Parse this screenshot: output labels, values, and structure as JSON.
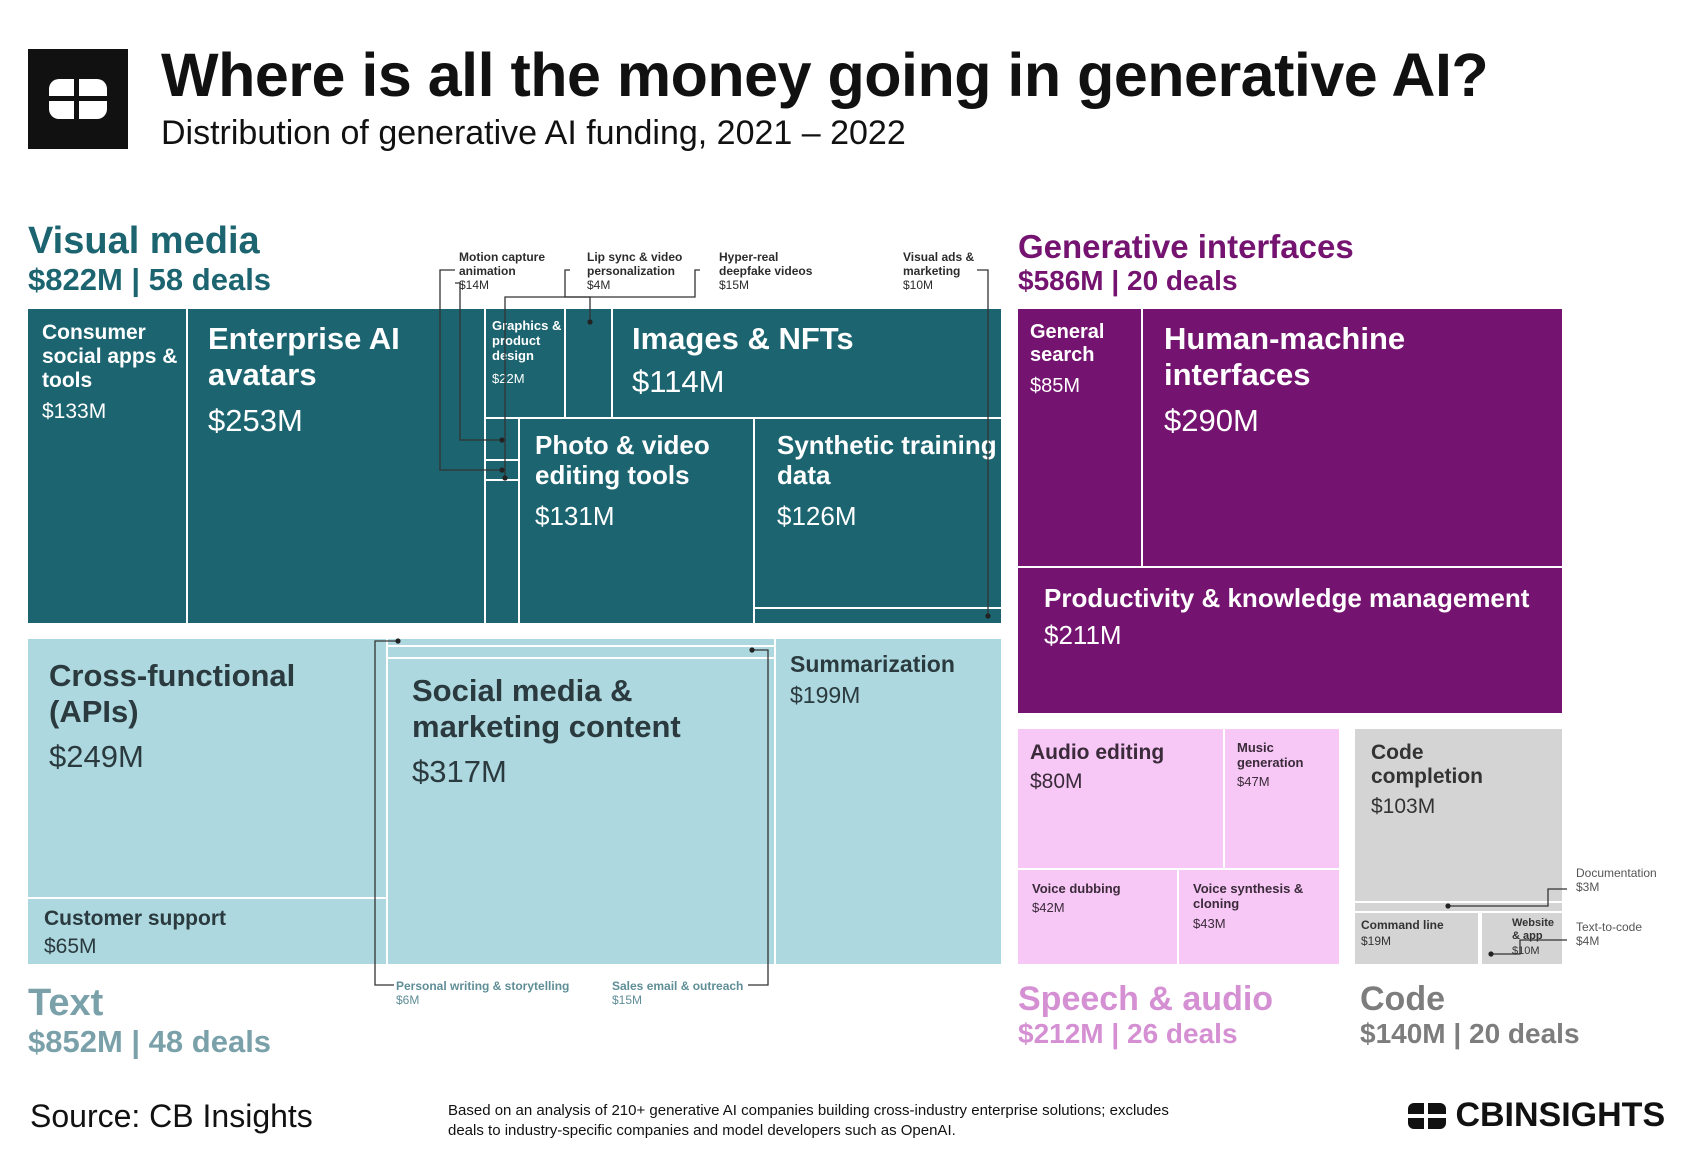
{
  "header": {
    "title": "Where is all the money going in generative AI?",
    "subtitle": "Distribution of generative AI funding, 2021 – 2022"
  },
  "groups": {
    "visual_media": {
      "name": "Visual media",
      "summary": "$822M | 58 deals",
      "color": "#1b6470"
    },
    "text": {
      "name": "Text",
      "summary": "$852M | 48 deals",
      "color": "#7aa1aa"
    },
    "generative_interfaces": {
      "name": "Generative interfaces",
      "summary": "$586M | 20 deals",
      "color": "#751370"
    },
    "speech_audio": {
      "name": "Speech & audio",
      "summary": "$212M | 26 deals",
      "color": "#d58fd3"
    },
    "code": {
      "name": "Code",
      "summary": "$140M | 20 deals",
      "color": "#7d7d7d"
    }
  },
  "chart_data": {
    "type": "treemap",
    "title": "Where is all the money going in generative AI?",
    "subtitle": "Distribution of generative AI funding, 2021 – 2022",
    "unit": "$M",
    "groups": [
      {
        "name": "Visual media",
        "total": 822,
        "deals": 58,
        "items": [
          {
            "name": "Consumer social apps & tools",
            "value": 133
          },
          {
            "name": "Enterprise AI avatars",
            "value": 253
          },
          {
            "name": "Graphics & product design",
            "value": 22
          },
          {
            "name": "Motion capture animation",
            "value": 14
          },
          {
            "name": "Lip sync & video personalization",
            "value": 4
          },
          {
            "name": "Hyper-real deepfake videos",
            "value": 15
          },
          {
            "name": "Images & NFTs",
            "value": 114
          },
          {
            "name": "Photo & video editing tools",
            "value": 131
          },
          {
            "name": "Synthetic training data",
            "value": 126
          },
          {
            "name": "Visual ads & marketing",
            "value": 10
          }
        ]
      },
      {
        "name": "Text",
        "total": 852,
        "deals": 48,
        "items": [
          {
            "name": "Cross-functional (APIs)",
            "value": 249
          },
          {
            "name": "Customer support",
            "value": 65
          },
          {
            "name": "Social media & marketing content",
            "value": 317
          },
          {
            "name": "Summarization",
            "value": 199
          },
          {
            "name": "Personal writing & storytelling",
            "value": 6
          },
          {
            "name": "Sales email & outreach",
            "value": 15
          }
        ]
      },
      {
        "name": "Generative interfaces",
        "total": 586,
        "deals": 20,
        "items": [
          {
            "name": "General search",
            "value": 85
          },
          {
            "name": "Human-machine interfaces",
            "value": 290
          },
          {
            "name": "Productivity & knowledge management",
            "value": 211
          }
        ]
      },
      {
        "name": "Speech & audio",
        "total": 212,
        "deals": 26,
        "items": [
          {
            "name": "Audio editing",
            "value": 80
          },
          {
            "name": "Music generation",
            "value": 47
          },
          {
            "name": "Voice dubbing",
            "value": 42
          },
          {
            "name": "Voice synthesis & cloning",
            "value": 43
          }
        ]
      },
      {
        "name": "Code",
        "total": 140,
        "deals": 20,
        "items": [
          {
            "name": "Code completion",
            "value": 103
          },
          {
            "name": "Command line",
            "value": 19
          },
          {
            "name": "Website & app",
            "value": 10
          },
          {
            "name": "Documentation",
            "value": 3
          },
          {
            "name": "Text-to-code",
            "value": 4
          }
        ]
      }
    ]
  },
  "tiles": {
    "consumer": {
      "label": "Consumer social apps & tools",
      "value": "$133M"
    },
    "avatars": {
      "label": "Enterprise AI avatars",
      "value": "$253M"
    },
    "graphics": {
      "label": "Graphics & product design",
      "value": "$22M"
    },
    "images": {
      "label": "Images & NFTs",
      "value": "$114M"
    },
    "photo": {
      "label": "Photo & video editing tools",
      "value": "$131M"
    },
    "synthetic": {
      "label": "Synthetic training data",
      "value": "$126M"
    },
    "cross": {
      "label": "Cross-functional (APIs)",
      "value": "$249M"
    },
    "support": {
      "label": "Customer support",
      "value": "$65M"
    },
    "social": {
      "label": "Social media & marketing content",
      "value": "$317M"
    },
    "summarization": {
      "label": "Summarization",
      "value": "$199M"
    },
    "search": {
      "label": "General search",
      "value": "$85M"
    },
    "hmi": {
      "label": "Human-machine interfaces",
      "value": "$290M"
    },
    "productivity": {
      "label": "Productivity & knowledge management",
      "value": "$211M"
    },
    "audio_edit": {
      "label": "Audio editing",
      "value": "$80M"
    },
    "music": {
      "label": "Music generation",
      "value": "$47M"
    },
    "dubbing": {
      "label": "Voice dubbing",
      "value": "$42M"
    },
    "synthesis": {
      "label": "Voice synthesis & cloning",
      "value": "$43M"
    },
    "completion": {
      "label": "Code completion",
      "value": "$103M"
    },
    "command": {
      "label": "Command line",
      "value": "$19M"
    },
    "website": {
      "label": "Website & app",
      "value": "$10M"
    }
  },
  "annotations": {
    "motion": {
      "label": "Motion capture animation",
      "value": "$14M"
    },
    "lipsync": {
      "label": "Lip sync & video personalization",
      "value": "$4M"
    },
    "deepfake": {
      "label": "Hyper-real deepfake videos",
      "value": "$15M"
    },
    "visual_ads": {
      "label": "Visual ads & marketing",
      "value": "$10M"
    },
    "personal": {
      "label": "Personal writing & storytelling",
      "value": "$6M"
    },
    "sales": {
      "label": "Sales email & outreach",
      "value": "$15M"
    },
    "documentation": {
      "label": "Documentation",
      "value": "$3M"
    },
    "text_to_code": {
      "label": "Text-to-code",
      "value": "$4M"
    }
  },
  "footer": {
    "source": "Source: CB Insights",
    "note": "Based on an analysis of 210+ generative AI companies building cross-industry enterprise solutions; excludes deals to industry-specific companies and model developers such as OpenAI.",
    "brand": "CBINSIGHTS"
  }
}
